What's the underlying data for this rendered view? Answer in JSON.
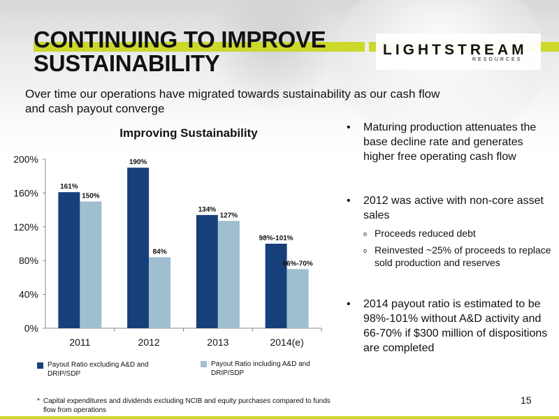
{
  "header": {
    "title_line1": "CONTINUING TO IMPROVE",
    "title_line2": "SUSTAINABILITY",
    "logo_main": "LIGHTSTREAM",
    "logo_sub": "RESOURCES"
  },
  "subtitle": "Over time our operations have migrated towards sustainability as our cash flow and cash payout converge",
  "colors": {
    "accent": "#ccd82a",
    "series_dark": "#17407a",
    "series_light": "#9fbfd1"
  },
  "chart_data": {
    "type": "bar",
    "title": "Improving Sustainability",
    "categories": [
      "2011",
      "2012",
      "2013",
      "2014(e)"
    ],
    "ylim": [
      0,
      200
    ],
    "yticks": [
      "0%",
      "40%",
      "80%",
      "120%",
      "160%",
      "200%"
    ],
    "ytick_values": [
      0,
      40,
      80,
      120,
      160,
      200
    ],
    "grid": false,
    "legend_position": "bottom",
    "series": [
      {
        "name": "Payout Ratio excluding A&D and DRIP/SDP",
        "values": [
          161,
          190,
          134,
          100
        ],
        "labels": [
          "161%",
          "190%",
          "134%",
          "98%-101%"
        ]
      },
      {
        "name": "Payout Ratio including A&D and DRIP/SDP",
        "values": [
          150,
          84,
          127,
          70
        ],
        "labels": [
          "150%",
          "84%",
          "127%",
          "66%-70%"
        ]
      }
    ]
  },
  "bullets": [
    {
      "text": "Maturing production attenuates the base decline rate and generates higher free operating cash flow",
      "subs": []
    },
    {
      "text": "2012 was active with non-core asset sales",
      "subs": [
        "Proceeds reduced debt",
        "Reinvested ~25% of proceeds to replace sold production and reserves"
      ]
    },
    {
      "text": "2014 payout ratio is estimated to be 98%-101% without A&D activity and 66-70% if $300 million of dispositions are completed",
      "subs": []
    }
  ],
  "footnote": {
    "marker": "*",
    "text": "Capital expenditures and dividends excluding NCIB and equity purchases compared to funds flow from operations"
  },
  "page_number": "15"
}
